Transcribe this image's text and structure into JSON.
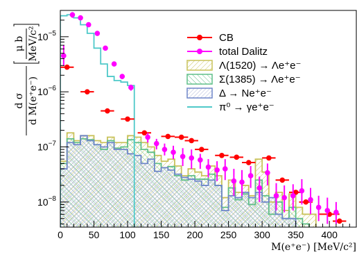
{
  "chart_data": {
    "type": "histogram",
    "xlabel": "M(e⁺e⁻) [MeV/c²]",
    "ylabel_top": "d σ",
    "ylabel_bottom": "d M(e⁺e⁻)",
    "ylabel_unit_top": "μ b",
    "ylabel_unit_bottom": "MeV/c²",
    "xlim": [
      0,
      440
    ],
    "ylim": [
      3.5e-09,
      3e-05
    ],
    "y_scale": "log",
    "x_ticks": [
      {
        "v": 0,
        "label": "0"
      },
      {
        "v": 50,
        "label": "50"
      },
      {
        "v": 100,
        "label": "100"
      },
      {
        "v": 150,
        "label": "150"
      },
      {
        "v": 200,
        "label": "200"
      },
      {
        "v": 250,
        "label": "250"
      },
      {
        "v": 300,
        "label": "300"
      },
      {
        "v": 350,
        "label": "350"
      },
      {
        "v": 400,
        "label": "400"
      }
    ],
    "y_ticks": [
      {
        "v": 1e-08,
        "base": "10",
        "exp": "−8"
      },
      {
        "v": 1e-07,
        "base": "10",
        "exp": "−7"
      },
      {
        "v": 1e-06,
        "base": "10",
        "exp": "−6"
      },
      {
        "v": 1e-05,
        "base": "10",
        "exp": "−5"
      }
    ],
    "legend": [
      {
        "key": "cb",
        "label": "CB",
        "style": "marker",
        "color": "#ff0000"
      },
      {
        "key": "dalitz",
        "label": "total Dalitz",
        "style": "marker",
        "color": "#ff00ff"
      },
      {
        "key": "lambda1520",
        "label": "Λ(1520) → Λe⁺e⁻",
        "style": "hatch",
        "color": "#c9c25a"
      },
      {
        "key": "sigma1385",
        "label": "Σ(1385) → Λe⁺e⁻",
        "style": "hatch",
        "color": "#5fbf88"
      },
      {
        "key": "delta",
        "label": "Δ → Ne⁺e⁻",
        "style": "hatch",
        "color": "#6f86c9"
      },
      {
        "key": "pi0",
        "label": "π⁰ → γe⁺e⁻",
        "style": "line",
        "color": "#4fc9c9"
      }
    ],
    "cb": [
      {
        "x": 10,
        "xe": 10,
        "y": 2.8e-06
      },
      {
        "x": 40,
        "xe": 10,
        "y": 1e-06
      },
      {
        "x": 70,
        "xe": 10,
        "y": 4.5e-07
      },
      {
        "x": 100,
        "xe": 10,
        "y": 3.2e-07
      },
      {
        "x": 125,
        "xe": 10,
        "y": 1.8e-07
      },
      {
        "x": 160,
        "xe": 10,
        "y": 1.55e-07
      },
      {
        "x": 180,
        "xe": 10,
        "y": 1.5e-07
      },
      {
        "x": 195,
        "xe": 10,
        "y": 1.3e-07
      },
      {
        "x": 210,
        "xe": 10,
        "y": 9e-08
      },
      {
        "x": 240,
        "xe": 10,
        "y": 7e-08
      },
      {
        "x": 262,
        "xe": 10,
        "y": 6.5e-08
      },
      {
        "x": 280,
        "xe": 10,
        "y": 5.2e-08
      },
      {
        "x": 310,
        "xe": 10,
        "y": 6.3e-08
      },
      {
        "x": 330,
        "xe": 10,
        "y": 2.5e-08
      },
      {
        "x": 350,
        "xe": 10,
        "y": 1.5e-08
      },
      {
        "x": 365,
        "xe": 10,
        "y": 1e-08
      },
      {
        "x": 400,
        "xe": 15,
        "y": 6e-09
      },
      {
        "x": 415,
        "xe": 10,
        "y": 4.5e-09
      }
    ],
    "dalitz": [
      {
        "x": 5,
        "y": 4.5e-06,
        "el": 3e-06,
        "eh": 7e-06
      },
      {
        "x": 18,
        "y": 2.5e-05,
        "el": 2.2e-05,
        "eh": 2.8e-05
      },
      {
        "x": 30,
        "y": 2.2e-05,
        "el": 2e-05,
        "eh": 2.4e-05
      },
      {
        "x": 42,
        "y": 1.65e-05,
        "el": 1.5e-05,
        "eh": 1.8e-05
      },
      {
        "x": 55,
        "y": 1.15e-05,
        "el": 1.05e-05,
        "eh": 1.25e-05
      },
      {
        "x": 67,
        "y": 6.2e-06,
        "el": 5.6e-06,
        "eh": 6.8e-06
      },
      {
        "x": 80,
        "y": 3.2e-06,
        "el": 2.9e-06,
        "eh": 3.5e-06
      },
      {
        "x": 92,
        "y": 1.9e-06,
        "el": 1.7e-06,
        "eh": 2.1e-06
      },
      {
        "x": 105,
        "y": 1.2e-06,
        "el": 1.05e-06,
        "eh": 1.35e-06
      },
      {
        "x": 130,
        "y": 1.5e-07,
        "el": 1.2e-07,
        "eh": 1.8e-07
      },
      {
        "x": 143,
        "y": 1.15e-07,
        "el": 9e-08,
        "eh": 1.4e-07
      },
      {
        "x": 155,
        "y": 9e-08,
        "el": 7e-08,
        "eh": 1.15e-07
      },
      {
        "x": 168,
        "y": 8e-08,
        "el": 6e-08,
        "eh": 1.05e-07
      },
      {
        "x": 182,
        "y": 6.7e-08,
        "el": 4.5e-08,
        "eh": 9.5e-08
      },
      {
        "x": 195,
        "y": 6.3e-08,
        "el": 4e-08,
        "eh": 9e-08
      },
      {
        "x": 208,
        "y": 5.8e-08,
        "el": 4e-08,
        "eh": 7.5e-08
      },
      {
        "x": 220,
        "y": 4.3e-08,
        "el": 2.8e-08,
        "eh": 6e-08
      },
      {
        "x": 233,
        "y": 3.8e-08,
        "el": 2.4e-08,
        "eh": 5.5e-08
      },
      {
        "x": 245,
        "y": 4e-08,
        "el": 2.5e-08,
        "eh": 6e-08
      },
      {
        "x": 258,
        "y": 2.4e-08,
        "el": 1.3e-08,
        "eh": 4e-08
      },
      {
        "x": 270,
        "y": 2.3e-08,
        "el": 1.3e-08,
        "eh": 3.8e-08
      },
      {
        "x": 283,
        "y": 3e-08,
        "el": 1.8e-08,
        "eh": 4.5e-08
      },
      {
        "x": 296,
        "y": 1.8e-08,
        "el": 1e-08,
        "eh": 2.9e-08
      },
      {
        "x": 308,
        "y": 3.4e-08,
        "el": 2e-08,
        "eh": 5e-08
      },
      {
        "x": 321,
        "y": 1.3e-08,
        "el": 7e-09,
        "eh": 2.2e-08
      },
      {
        "x": 333,
        "y": 1.2e-08,
        "el": 6.5e-09,
        "eh": 2e-08
      },
      {
        "x": 346,
        "y": 1.3e-08,
        "el": 7e-09,
        "eh": 2.1e-08
      },
      {
        "x": 359,
        "y": 1.6e-08,
        "el": 9e-09,
        "eh": 2.6e-08
      },
      {
        "x": 372,
        "y": 1.1e-08,
        "el": 6e-09,
        "eh": 1.8e-08
      },
      {
        "x": 384,
        "y": 8e-09,
        "el": 4.5e-09,
        "eh": 1.3e-08
      },
      {
        "x": 397,
        "y": 7e-09,
        "el": 4e-09,
        "eh": 1.2e-08
      },
      {
        "x": 410,
        "y": 6.5e-09,
        "el": 4e-09,
        "eh": 1e-08
      }
    ],
    "bin_edges": [
      0,
      10,
      20,
      30,
      40,
      50,
      60,
      70,
      80,
      90,
      100,
      110,
      120,
      130,
      140,
      150,
      160,
      170,
      180,
      190,
      200,
      210,
      220,
      230,
      240,
      250,
      260,
      270,
      280,
      290,
      300,
      310,
      320,
      330,
      340,
      350,
      360,
      370,
      380,
      390,
      400,
      410,
      420,
      430,
      440
    ],
    "lambda1520": [
      5.5e-08,
      1.8e-07,
      1.3e-07,
      1.6e-07,
      1.6e-07,
      1.3e-07,
      1.2e-07,
      1.5e-07,
      1.2e-07,
      1.2e-07,
      1.6e-07,
      1.5e-07,
      1.2e-07,
      1e-07,
      7e-08,
      5.5e-08,
      6e-08,
      4.5e-08,
      3e-08,
      4e-08,
      3.5e-08,
      3e-08,
      4.5e-08,
      3e-08,
      1.2e-08,
      2.5e-08,
      1.5e-08,
      2e-08,
      1.3e-08,
      6e-08,
      3.5e-08,
      1e-08,
      1.5e-08,
      7e-09,
      1.4e-08,
      8e-09,
      6e-09,
      6e-09,
      0,
      0,
      0,
      0,
      0,
      0
    ],
    "sigma1385": [
      5e-08,
      1.4e-07,
      1.2e-07,
      1.4e-07,
      1.35e-07,
      1.1e-07,
      9e-08,
      1.3e-07,
      9.5e-08,
      1e-07,
      1.35e-07,
      1.2e-07,
      9e-08,
      8e-08,
      5e-08,
      4.2e-08,
      4.4e-08,
      3e-08,
      2.5e-08,
      3e-08,
      2.6e-08,
      2.6e-08,
      3.2e-08,
      2e-08,
      8e-09,
      1.8e-08,
      1.1e-08,
      1.4e-08,
      9e-09,
      2.5e-08,
      1.3e-08,
      6e-09,
      1e-08,
      5e-09,
      8e-09,
      5e-09,
      4e-09,
      0,
      0,
      0,
      0,
      0,
      0,
      0
    ],
    "delta": [
      4e-08,
      1.2e-07,
      1.1e-07,
      1.6e-07,
      1.3e-07,
      1.1e-07,
      1e-07,
      1.2e-07,
      9e-08,
      9e-08,
      7.5e-08,
      7e-08,
      5e-08,
      6e-08,
      3.6e-08,
      4.2e-08,
      3.8e-08,
      3.2e-08,
      2.8e-08,
      2.6e-08,
      2.4e-08,
      2e-08,
      2.5e-08,
      2e-08,
      7e-09,
      1.3e-08,
      1.2e-08,
      1.5e-08,
      1.2e-08,
      1.5e-08,
      1e-08,
      1.2e-08,
      6e-09,
      5e-09,
      5e-09,
      0,
      0,
      0,
      0,
      0,
      0,
      0,
      0,
      0
    ],
    "pi0": [
      2.4e-05,
      2.5e-05,
      2.2e-05,
      1.65e-05,
      1.15e-05,
      6.2e-06,
      3.2e-06,
      1.9e-06,
      1.6e-06,
      1.5e-06,
      1.3e-06,
      0,
      0,
      0,
      0,
      0,
      0,
      0,
      0,
      0,
      0,
      0,
      0,
      0,
      0,
      0,
      0,
      0,
      0,
      0,
      0,
      0,
      0,
      0,
      0,
      0,
      0,
      0,
      0,
      0,
      0,
      0,
      0,
      0
    ]
  }
}
